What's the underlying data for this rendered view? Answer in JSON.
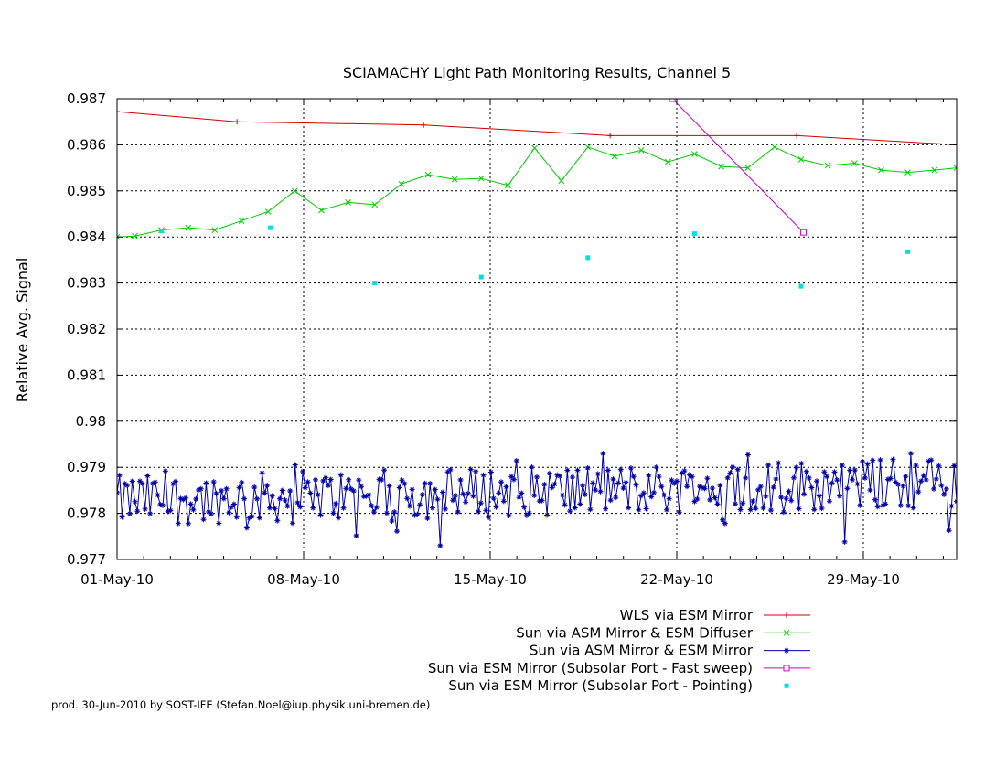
{
  "chart_data": {
    "type": "line",
    "title": "SCIAMACHY Light Path Monitoring Results, Channel 5",
    "xlabel": "",
    "ylabel": "Relative Avg. Signal",
    "xlim": [
      "2010-05-01",
      "2010-06-01T12:00"
    ],
    "ylim": [
      0.977,
      0.987
    ],
    "x_ticks": [
      {
        "date": "2010-05-01",
        "label": "01-May-10"
      },
      {
        "date": "2010-05-08",
        "label": "08-May-10"
      },
      {
        "date": "2010-05-15",
        "label": "15-May-10"
      },
      {
        "date": "2010-05-22",
        "label": "22-May-10"
      },
      {
        "date": "2010-05-29",
        "label": "29-May-10"
      }
    ],
    "y_ticks": [
      {
        "value": 0.977,
        "label": "0.977"
      },
      {
        "value": 0.978,
        "label": "0.978"
      },
      {
        "value": 0.979,
        "label": "0.979"
      },
      {
        "value": 0.98,
        "label": "0.98"
      },
      {
        "value": 0.981,
        "label": "0.981"
      },
      {
        "value": 0.982,
        "label": "0.982"
      },
      {
        "value": 0.983,
        "label": "0.983"
      },
      {
        "value": 0.984,
        "label": "0.984"
      },
      {
        "value": 0.985,
        "label": "0.985"
      },
      {
        "value": 0.986,
        "label": "0.986"
      },
      {
        "value": 0.987,
        "label": "0.987"
      }
    ],
    "grid": true,
    "legend_position": "bottom-right",
    "series": [
      {
        "name": "WLS via ESM Mirror",
        "color": "#cc0000",
        "marker": "plus",
        "style": "line",
        "x": [
          "2010-05-01",
          "2010-05-05T12:00",
          "2010-05-12T12:00",
          "2010-05-19T12:00",
          "2010-05-26T12:00",
          "2010-06-01T12:00"
        ],
        "y": [
          0.98672,
          0.9865,
          0.98643,
          0.9862,
          0.9862,
          0.986
        ]
      },
      {
        "name": "Sun via ASM Mirror & ESM Diffuser",
        "color": "#00cc00",
        "marker": "cross",
        "style": "line",
        "x": [
          "2010-05-01",
          "2010-05-01T16:00",
          "2010-05-02T16:00",
          "2010-05-03T16:00",
          "2010-05-04T16:00",
          "2010-05-05T16:00",
          "2010-05-06T16:00",
          "2010-05-07T16:00",
          "2010-05-08T16:00",
          "2010-05-09T16:00",
          "2010-05-10T16:00",
          "2010-05-11T16:00",
          "2010-05-12T16:00",
          "2010-05-13T16:00",
          "2010-05-14T16:00",
          "2010-05-15T16:00",
          "2010-05-16T16:00",
          "2010-05-17T16:00",
          "2010-05-18T16:00",
          "2010-05-19T16:00",
          "2010-05-20T16:00",
          "2010-05-21T16:00",
          "2010-05-22T16:00",
          "2010-05-23T16:00",
          "2010-05-24T16:00",
          "2010-05-25T16:00",
          "2010-05-26T16:00",
          "2010-05-27T16:00",
          "2010-05-28T16:00",
          "2010-05-29T16:00",
          "2010-05-30T16:00",
          "2010-05-31T16:00",
          "2010-06-01T12:00"
        ],
        "y": [
          0.984,
          0.98402,
          0.98415,
          0.9842,
          0.98415,
          0.98435,
          0.98455,
          0.985,
          0.98458,
          0.98475,
          0.9847,
          0.98515,
          0.98535,
          0.98525,
          0.98527,
          0.98512,
          0.98593,
          0.98522,
          0.98595,
          0.98575,
          0.98588,
          0.98563,
          0.9858,
          0.98553,
          0.9855,
          0.98595,
          0.98568,
          0.98555,
          0.9856,
          0.98545,
          0.9854,
          0.98545,
          0.9855
        ]
      },
      {
        "name": "Sun via ASM Mirror & ESM Mirror",
        "color": "#0000aa",
        "marker": "star",
        "style": "line",
        "noisy_band": true,
        "x_range": [
          "2010-05-01",
          "2010-06-01T12:00"
        ],
        "y_min": 0.9773,
        "y_max": 0.9793,
        "y_typical": [
          0.978,
          0.979
        ]
      },
      {
        "name": "Sun via ESM Mirror (Subsolar Port - Fast sweep)",
        "color": "#cc00cc",
        "marker": "open-square",
        "style": "line",
        "x": [
          "2010-05-21T20:00",
          "2010-05-26T18:00"
        ],
        "y": [
          0.987,
          0.9841
        ]
      },
      {
        "name": "Sun via ESM Mirror (Subsolar Port - Pointing)",
        "color": "#00e0e0",
        "marker": "filled-square",
        "style": "points",
        "x": [
          "2010-05-02T16:00",
          "2010-05-06T18:00",
          "2010-05-10T16:00",
          "2010-05-14T16:00",
          "2010-05-18T16:00",
          "2010-05-22T16:00",
          "2010-05-26T16:00",
          "2010-05-30T16:00"
        ],
        "y": [
          0.98413,
          0.9842,
          0.983,
          0.98313,
          0.98355,
          0.98407,
          0.98293,
          0.98368
        ]
      }
    ]
  },
  "footer": "prod. 30-Jun-2010 by SOST-IFE (Stefan.Noel@iup.physik.uni-bremen.de)"
}
